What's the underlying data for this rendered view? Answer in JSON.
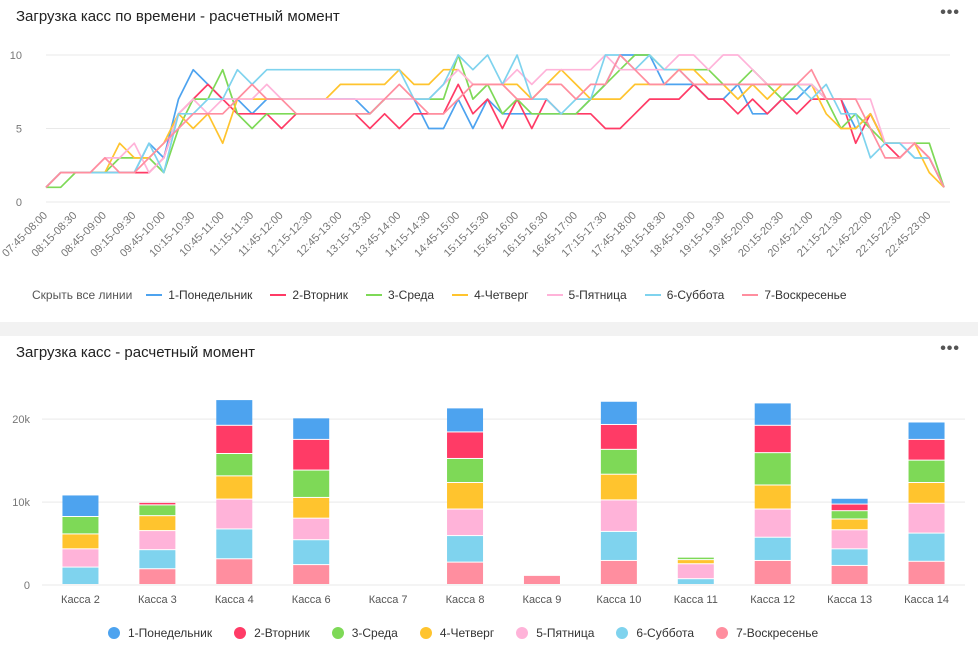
{
  "colors": {
    "series": [
      "#4da3ef",
      "#ff3b66",
      "#7ed957",
      "#ffc42e",
      "#ffb3d9",
      "#7fd3ee",
      "#ff8e9f"
    ],
    "grid": "#e9e9e9",
    "axis_text": "#777777"
  },
  "icons": {
    "more": "more-icon"
  },
  "line_chart": {
    "title": "Загрузка касс по времени - расчетный момент",
    "more_label": "•••",
    "hide_all_label": "Скрыть все линии",
    "legend": [
      "1-Понедельник",
      "2-Вторник",
      "3-Среда",
      "4-Четверг",
      "5-Пятница",
      "6-Суббота",
      "7-Воскресенье"
    ]
  },
  "bar_chart": {
    "title": "Загрузка касс - расчетный момент",
    "more_label": "•••",
    "legend": [
      "1-Понедельник",
      "2-Вторник",
      "3-Среда",
      "4-Четверг",
      "5-Пятница",
      "6-Суббота",
      "7-Воскресенье"
    ]
  },
  "chart_data": [
    {
      "type": "line",
      "title": "Загрузка касс по времени - расчетный момент",
      "xlabel": "",
      "ylabel": "",
      "ylim": [
        0,
        10
      ],
      "yticks": [
        0,
        5,
        10
      ],
      "x": [
        "07:45-08:00",
        "08:00-08:15",
        "08:15-08:30",
        "08:30-08:45",
        "08:45-09:00",
        "09:00-09:15",
        "09:15-09:30",
        "09:30-09:45",
        "09:45-10:00",
        "10:00-10:15",
        "10:15-10:30",
        "10:30-10:45",
        "10:45-11:00",
        "11:00-11:15",
        "11:15-11:30",
        "11:30-11:45",
        "11:45-12:00",
        "12:00-12:15",
        "12:15-12:30",
        "12:30-12:45",
        "12:45-13:00",
        "13:00-13:15",
        "13:15-13:30",
        "13:30-13:45",
        "13:45-14:00",
        "14:00-14:15",
        "14:15-14:30",
        "14:30-14:45",
        "14:45-15:00",
        "15:00-15:15",
        "15:15-15:30",
        "15:30-15:45",
        "15:45-16:00",
        "16:00-16:15",
        "16:15-16:30",
        "16:30-16:45",
        "16:45-17:00",
        "17:00-17:15",
        "17:15-17:30",
        "17:30-17:45",
        "17:45-18:00",
        "18:00-18:15",
        "18:15-18:30",
        "18:30-18:45",
        "18:45-19:00",
        "19:00-19:15",
        "19:15-19:30",
        "19:30-19:45",
        "19:45-20:00",
        "20:00-20:15",
        "20:15-20:30",
        "20:30-20:45",
        "20:45-21:00",
        "21:00-21:15",
        "21:15-21:30",
        "21:30-21:45",
        "21:45-22:00",
        "22:00-22:15",
        "22:15-22:30",
        "22:30-22:45",
        "22:45-23:00",
        "23:00-23:15"
      ],
      "tick_labels": [
        "07:45-08:00",
        "08:15-08:30",
        "08:45-09:00",
        "09:15-09:30",
        "09:45-10:00",
        "10:15-10:30",
        "10:45-11:00",
        "11:15-11:30",
        "11:45-12:00",
        "12:15-12:30",
        "12:45-13:00",
        "13:15-13:30",
        "13:45-14:00",
        "14:15-14:30",
        "14:45-15:00",
        "15:15-15:30",
        "15:45-16:00",
        "16:15-16:30",
        "16:45-17:00",
        "17:15-17:30",
        "17:45-18:00",
        "18:15-18:30",
        "18:45-19:00",
        "19:15-19:30",
        "19:45-20:00",
        "20:15-20:30",
        "20:45-21:00",
        "21:15-21:30",
        "21:45-22:00",
        "22:15-22:30",
        "22:45-23:00"
      ],
      "series": [
        {
          "name": "1-Понедельник",
          "values": [
            1,
            2,
            2,
            2,
            2,
            2,
            2,
            4,
            3,
            7,
            9,
            8,
            7,
            7,
            6,
            7,
            7,
            7,
            7,
            7,
            7,
            7,
            6,
            7,
            7,
            7,
            5,
            5,
            7,
            5,
            7,
            6,
            6,
            6,
            6,
            6,
            6,
            7,
            8,
            10,
            10,
            10,
            8,
            8,
            8,
            7,
            7,
            8,
            6,
            6,
            7,
            7,
            8,
            7,
            7,
            5,
            6,
            4,
            4,
            3,
            3,
            1
          ]
        },
        {
          "name": "2-Вторник",
          "values": [
            1,
            2,
            2,
            2,
            2,
            2,
            2,
            2,
            3,
            6,
            7,
            8,
            7,
            6,
            6,
            6,
            5,
            6,
            6,
            6,
            6,
            6,
            5,
            6,
            5,
            6,
            6,
            6,
            8,
            6,
            7,
            5,
            7,
            5,
            7,
            6,
            6,
            6,
            5,
            5,
            6,
            7,
            7,
            7,
            8,
            7,
            7,
            6,
            7,
            6,
            7,
            6,
            7,
            7,
            7,
            4,
            6,
            4,
            3,
            4,
            3,
            1
          ]
        },
        {
          "name": "3-Среда",
          "values": [
            1,
            1,
            2,
            2,
            2,
            3,
            3,
            3,
            2,
            5,
            7,
            7,
            9,
            6,
            5,
            6,
            6,
            6,
            6,
            6,
            6,
            6,
            6,
            7,
            7,
            7,
            7,
            7,
            10,
            7,
            8,
            6,
            7,
            6,
            6,
            6,
            6,
            7,
            8,
            9,
            10,
            10,
            9,
            9,
            9,
            9,
            8,
            8,
            9,
            8,
            7,
            8,
            8,
            7,
            5,
            6,
            5,
            4,
            4,
            4,
            4,
            1
          ]
        },
        {
          "name": "4-Четверг",
          "values": [
            1,
            2,
            2,
            2,
            2,
            4,
            3,
            3,
            4,
            6,
            5,
            6,
            4,
            7,
            7,
            7,
            7,
            7,
            7,
            7,
            8,
            8,
            8,
            8,
            9,
            8,
            8,
            9,
            9,
            8,
            8,
            8,
            8,
            7,
            8,
            9,
            8,
            7,
            7,
            7,
            8,
            8,
            8,
            9,
            9,
            8,
            8,
            7,
            8,
            7,
            8,
            8,
            8,
            6,
            5,
            5,
            6,
            4,
            4,
            4,
            2,
            1
          ]
        },
        {
          "name": "5-Пятница",
          "values": [
            1,
            2,
            2,
            2,
            3,
            3,
            4,
            2,
            3,
            6,
            7,
            6,
            7,
            7,
            7,
            8,
            7,
            7,
            7,
            7,
            7,
            7,
            7,
            7,
            7,
            7,
            7,
            8,
            9,
            8,
            8,
            8,
            9,
            8,
            9,
            9,
            9,
            9,
            10,
            9,
            9,
            9,
            9,
            10,
            10,
            9,
            10,
            10,
            9,
            8,
            8,
            8,
            8,
            7,
            7,
            7,
            7,
            4,
            4,
            4,
            3,
            1
          ]
        },
        {
          "name": "6-Суббота",
          "values": [
            1,
            2,
            2,
            2,
            2,
            2,
            2,
            4,
            2,
            6,
            6,
            7,
            7,
            9,
            8,
            9,
            9,
            9,
            9,
            9,
            9,
            9,
            9,
            9,
            9,
            7,
            7,
            8,
            10,
            9,
            10,
            8,
            10,
            7,
            7,
            6,
            7,
            7,
            10,
            10,
            9,
            10,
            9,
            9,
            8,
            8,
            8,
            8,
            8,
            8,
            8,
            8,
            7,
            8,
            6,
            6,
            3,
            4,
            4,
            3,
            3,
            1
          ]
        },
        {
          "name": "7-Воскресенье",
          "values": [
            1,
            2,
            2,
            2,
            3,
            2,
            2,
            3,
            4,
            5,
            6,
            6,
            6,
            7,
            8,
            7,
            7,
            6,
            6,
            6,
            6,
            6,
            6,
            7,
            8,
            7,
            6,
            6,
            7,
            8,
            8,
            8,
            7,
            7,
            8,
            8,
            7,
            8,
            8,
            10,
            9,
            8,
            8,
            9,
            8,
            8,
            8,
            8,
            8,
            8,
            8,
            8,
            9,
            7,
            7,
            7,
            5,
            3,
            3,
            4,
            3,
            1
          ]
        }
      ]
    },
    {
      "type": "bar",
      "stacked": true,
      "title": "Загрузка касс - расчетный момент",
      "xlabel": "",
      "ylabel": "",
      "ylim": [
        0,
        24000
      ],
      "yticks": [
        0,
        10000,
        20000
      ],
      "ytick_labels": [
        "0",
        "10k",
        "20k"
      ],
      "categories": [
        "Касса 2",
        "Касса 3",
        "Касса 4",
        "Касса 6",
        "Касса 7",
        "Касса 8",
        "Касса 9",
        "Касса 10",
        "Касса 11",
        "Касса 12",
        "Касса 13",
        "Касса 14"
      ],
      "series": [
        {
          "name": "1-Понедельник",
          "values": [
            2600,
            0,
            3100,
            2600,
            0,
            2900,
            0,
            2800,
            0,
            2700,
            700,
            2100
          ]
        },
        {
          "name": "2-Вторник",
          "values": [
            0,
            300,
            3400,
            3700,
            0,
            3200,
            0,
            3000,
            0,
            3300,
            800,
            2500
          ]
        },
        {
          "name": "3-Среда",
          "values": [
            2100,
            1300,
            2700,
            3300,
            0,
            2900,
            0,
            3000,
            300,
            3900,
            1000,
            2700
          ]
        },
        {
          "name": "4-Четверг",
          "values": [
            1800,
            1800,
            2800,
            2500,
            0,
            3200,
            0,
            3100,
            500,
            2900,
            1300,
            2500
          ]
        },
        {
          "name": "5-Пятница",
          "values": [
            2200,
            2300,
            3600,
            2600,
            0,
            3200,
            0,
            3800,
            1800,
            3400,
            2300,
            3600
          ]
        },
        {
          "name": "6-Суббота",
          "values": [
            2100,
            2300,
            3600,
            3000,
            0,
            3200,
            0,
            3500,
            700,
            2800,
            2000,
            3400
          ]
        },
        {
          "name": "7-Воскресенье",
          "values": [
            0,
            1900,
            3100,
            2400,
            0,
            2700,
            1100,
            2900,
            0,
            2900,
            2300,
            2800
          ]
        }
      ]
    }
  ]
}
